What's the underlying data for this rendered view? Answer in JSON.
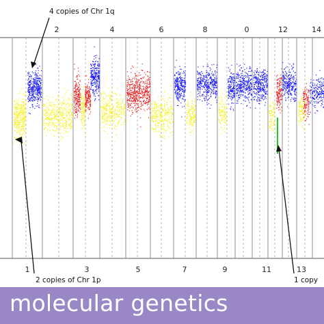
{
  "annotations": {
    "chr1q": "4 copies of Chr 1q",
    "chr1p": "2 copies of Chr 1p",
    "one_copy": "1 copy"
  },
  "top_tick_labels": [
    "2",
    "4",
    "6",
    "8",
    "0",
    "12",
    "14"
  ],
  "bottom_tick_labels": [
    "1",
    "3",
    "5",
    "7",
    "9",
    "11",
    "13"
  ],
  "banner": {
    "text": "molecular genetics",
    "background": "#9a88c6",
    "text_color": "#ffffff"
  },
  "colors": {
    "gain": "#1a1aff",
    "loss_or_cnloh": "#e82020",
    "normal": "#f4f23a",
    "single_copy_marker": "#22cc22",
    "grid_line": "#888888"
  },
  "segments": [
    {
      "chr": "1p",
      "state": "normal"
    },
    {
      "chr": "1q",
      "state": "gain"
    },
    {
      "chr": "2",
      "state": "normal"
    },
    {
      "chr": "3",
      "state": "mixed"
    },
    {
      "chr": "4",
      "state": "normal"
    },
    {
      "chr": "5",
      "state": "loss_or_cnloh"
    },
    {
      "chr": "6",
      "state": "normal"
    },
    {
      "chr": "7",
      "state": "gain"
    },
    {
      "chr": "8",
      "state": "normal"
    },
    {
      "chr": "9",
      "state": "gain"
    },
    {
      "chr": "10",
      "state": "gain"
    },
    {
      "chr": "11",
      "state": "gain"
    },
    {
      "chr": "12",
      "state": "mixed"
    },
    {
      "chr": "13",
      "state": "gain"
    },
    {
      "chr": "14",
      "state": "mixed"
    }
  ]
}
